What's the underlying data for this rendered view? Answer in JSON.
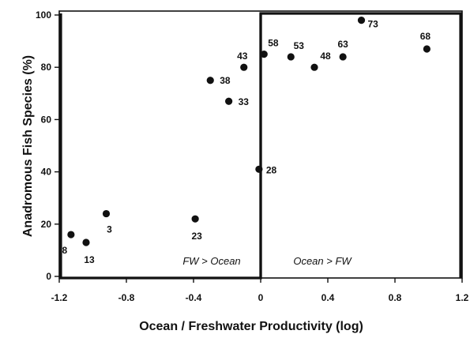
{
  "chart_data": {
    "type": "scatter",
    "title": "",
    "xlabel": "Ocean / Freshwater Productivity (log)",
    "ylabel": "Anadromous Fish Species (%)",
    "xlim": [
      -1.2,
      1.2
    ],
    "ylim": [
      0,
      100
    ],
    "xticks": [
      -1.2,
      -0.8,
      -0.4,
      0,
      0.4,
      0.8,
      1.2
    ],
    "xtick_labels": [
      "-1.2",
      "-0.8",
      "-0.4",
      "0",
      "0.4",
      "0.8",
      "1.2"
    ],
    "yticks": [
      0,
      20,
      40,
      60,
      80,
      100
    ],
    "ytick_labels": [
      "0",
      "20",
      "40",
      "60",
      "80",
      "100"
    ],
    "grid": false,
    "points": [
      {
        "x": -1.13,
        "y": 16,
        "label": "8"
      },
      {
        "x": -1.04,
        "y": 13,
        "label": "13"
      },
      {
        "x": -0.92,
        "y": 24,
        "label": "3"
      },
      {
        "x": -0.39,
        "y": 22,
        "label": "23"
      },
      {
        "x": -0.3,
        "y": 75,
        "label": "38"
      },
      {
        "x": -0.19,
        "y": 67,
        "label": "33"
      },
      {
        "x": -0.1,
        "y": 80,
        "label": "43"
      },
      {
        "x": -0.01,
        "y": 41,
        "label": "28"
      },
      {
        "x": 0.02,
        "y": 85,
        "label": "58"
      },
      {
        "x": 0.18,
        "y": 84,
        "label": "53"
      },
      {
        "x": 0.32,
        "y": 80,
        "label": "48"
      },
      {
        "x": 0.49,
        "y": 84,
        "label": "63"
      },
      {
        "x": 0.6,
        "y": 98,
        "label": "73"
      },
      {
        "x": 0.99,
        "y": 87,
        "label": "68"
      }
    ],
    "regions": [
      {
        "label": "FW > Ocean",
        "x_range": [
          -1.2,
          0
        ],
        "y_range": [
          0,
          100
        ]
      },
      {
        "label": "Ocean > FW",
        "x_range": [
          0,
          1.2
        ],
        "y_range": [
          0,
          100
        ]
      }
    ]
  }
}
